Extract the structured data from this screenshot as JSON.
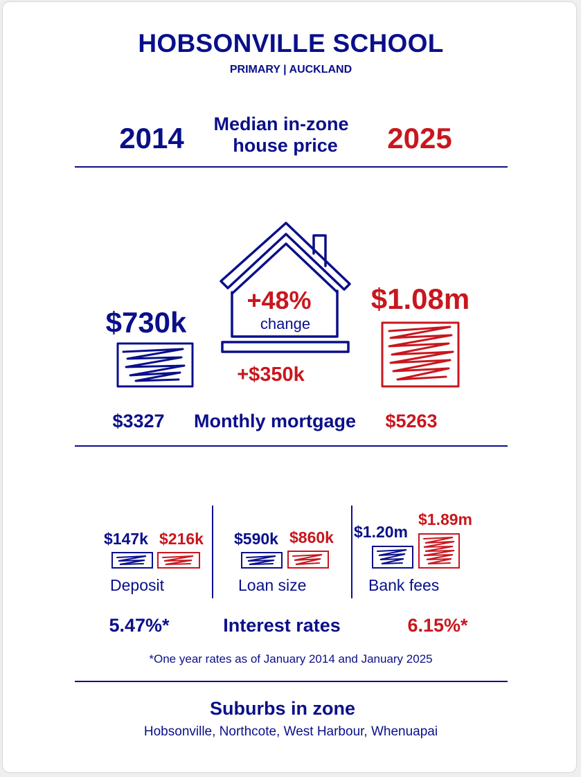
{
  "header": {
    "title": "HOBSONVILLE SCHOOL",
    "subtitle": "PRIMARY | AUCKLAND"
  },
  "years": {
    "start": "2014",
    "end": "2025",
    "heading_line1": "Median in-zone",
    "heading_line2": "house price"
  },
  "price": {
    "start_value": "$730k",
    "end_value": "$1.08m",
    "change_percent": "+48%",
    "change_label": "change",
    "change_amount": "+$350k"
  },
  "mortgage": {
    "start_value": "$3327",
    "label": "Monthly mortgage",
    "end_value": "$5263"
  },
  "breakdown": [
    {
      "label": "Deposit",
      "start": "$147k",
      "end": "$216k"
    },
    {
      "label": "Loan size",
      "start": "$590k",
      "end": "$860k"
    },
    {
      "label": "Bank fees",
      "start": "$1.20m",
      "end": "$1.89m"
    }
  ],
  "interest": {
    "start_value": "5.47%*",
    "label": "Interest rates",
    "end_value": "6.15%*",
    "footnote": "*One year rates as of January 2014 and January 2025"
  },
  "suburbs": {
    "heading": "Suburbs in zone",
    "list": "Hobsonville, Northcote, West Harbour, Whenuapai"
  },
  "colors": {
    "navy": "#0a0f8a",
    "red": "#c8171e",
    "background": "#ffffff"
  },
  "icons": {
    "house": "house-outline-icon",
    "scribble_box": "scribble-box-icon"
  }
}
